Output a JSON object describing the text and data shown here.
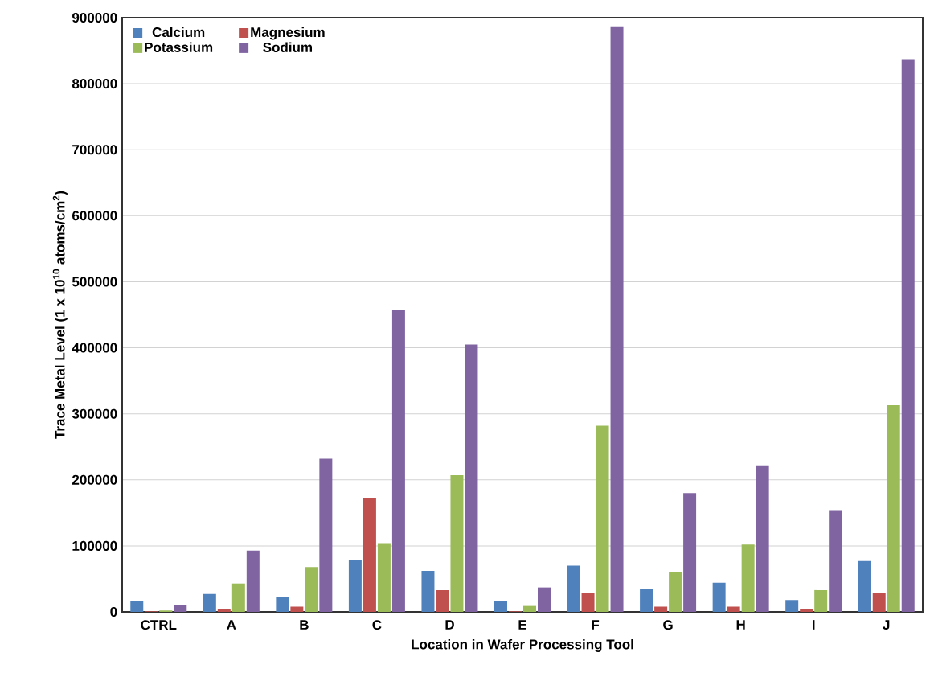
{
  "chart_data": {
    "type": "bar",
    "xlabel": "Location in Wafer Processing Tool",
    "ylabel": "Trace Metal Level (1 x 10$^{10}$ atoms/cm$^{2}$)",
    "categories": [
      "CTRL",
      "A",
      "B",
      "C",
      "D",
      "E",
      "F",
      "G",
      "H",
      "I",
      "J"
    ],
    "series": [
      {
        "name": "Calcium",
        "color": "#4f81bd",
        "values": [
          16000,
          27000,
          23000,
          78000,
          62000,
          16000,
          70000,
          35000,
          44000,
          18000,
          77000
        ]
      },
      {
        "name": "Magnesium",
        "color": "#c0504d",
        "values": [
          1000,
          5000,
          8000,
          172000,
          33000,
          1000,
          28000,
          8000,
          8000,
          4000,
          28000
        ]
      },
      {
        "name": "Potassium",
        "color": "#9bbb59",
        "values": [
          2000,
          43000,
          68000,
          104000,
          207000,
          9000,
          282000,
          60000,
          102000,
          33000,
          313000
        ]
      },
      {
        "name": "Sodium",
        "color": "#8064a2",
        "values": [
          11000,
          93000,
          232000,
          457000,
          405000,
          37000,
          887000,
          180000,
          222000,
          154000,
          836000
        ]
      }
    ],
    "ylim": [
      0,
      900000
    ],
    "yticks": [
      0,
      100000,
      200000,
      300000,
      400000,
      500000,
      600000,
      700000,
      800000,
      900000
    ],
    "grid": "y",
    "legend": "top left"
  }
}
